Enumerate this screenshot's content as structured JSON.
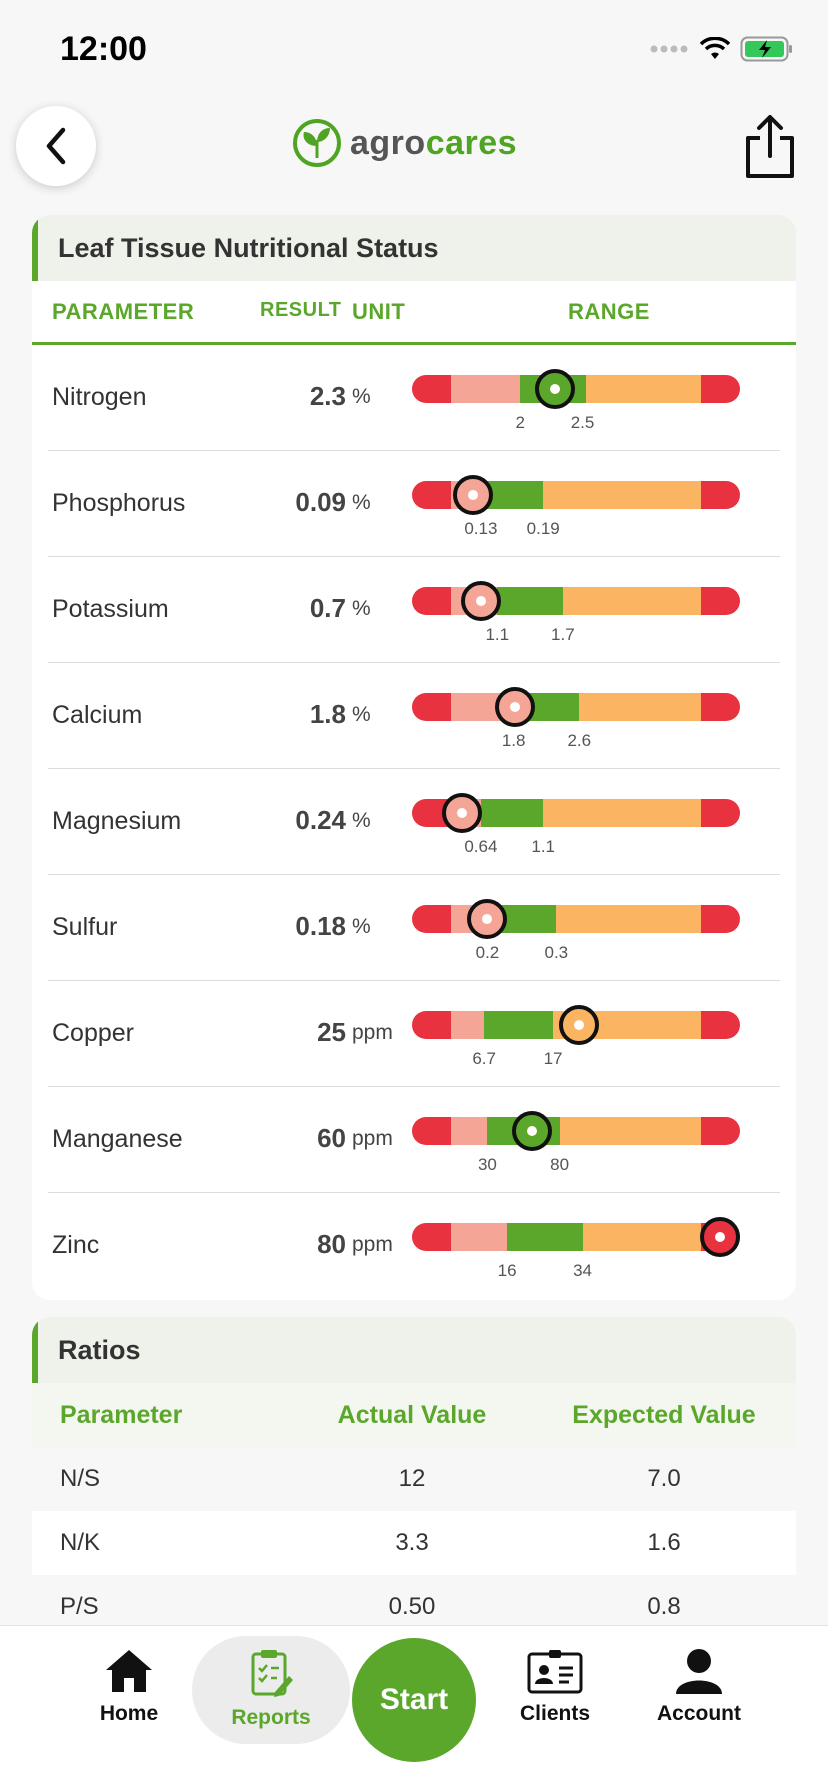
{
  "status_bar": {
    "time": "12:00"
  },
  "header": {
    "logo_part1": "agro",
    "logo_part2": "cares"
  },
  "leaf": {
    "title": "Leaf Tissue Nutritional Status",
    "columns": {
      "parameter": "PARAMETER",
      "result": "RESULT",
      "unit": "UNIT",
      "range": "RANGE"
    },
    "rows": [
      {
        "name": "Nitrogen",
        "result": "2.3",
        "unit": "%",
        "low": "2",
        "high": "2.5",
        "marker_color": "#5aa72b",
        "marker_value": 0.437
      },
      {
        "name": "Phosphorus",
        "result": "0.09",
        "unit": "%",
        "low": "0.13",
        "high": "0.19",
        "marker_color": "#f4a596",
        "marker_value": 0.186
      },
      {
        "name": "Potassium",
        "result": "0.7",
        "unit": "%",
        "low": "1.1",
        "high": "1.7",
        "marker_color": "#f4a596",
        "marker_value": 0.21
      },
      {
        "name": "Calcium",
        "result": "1.8",
        "unit": "%",
        "low": "1.8",
        "high": "2.6",
        "marker_color": "#f4a596",
        "marker_value": 0.314
      },
      {
        "name": "Magnesium",
        "result": "0.24",
        "unit": "%",
        "low": "0.64",
        "high": "1.1",
        "marker_color": "#f4a596",
        "marker_value": 0.152
      },
      {
        "name": "Sulfur",
        "result": "0.18",
        "unit": "%",
        "low": "0.2",
        "high": "0.3",
        "marker_color": "#f4a596",
        "marker_value": 0.228
      },
      {
        "name": "Copper",
        "result": "25",
        "unit": "ppm",
        "low": "6.7",
        "high": "17",
        "marker_color": "#fbb462",
        "marker_value": 0.508
      },
      {
        "name": "Manganese",
        "result": "60",
        "unit": "ppm",
        "low": "30",
        "high": "80",
        "marker_color": "#5aa72b",
        "marker_value": 0.366
      },
      {
        "name": "Zinc",
        "result": "80",
        "unit": "ppm",
        "low": "16",
        "high": "34",
        "marker_color": "#e8323f",
        "marker_value": 0.939
      }
    ]
  },
  "ratios": {
    "title": "Ratios",
    "columns": {
      "parameter": "Parameter",
      "actual": "Actual Value",
      "expected": "Expected Value"
    },
    "rows": [
      {
        "parameter": "N/S",
        "actual": "12",
        "expected": "7.0"
      },
      {
        "parameter": "N/K",
        "actual": "3.3",
        "expected": "1.6"
      },
      {
        "parameter": "P/S",
        "actual": "0.50",
        "expected": "0.8"
      }
    ]
  },
  "nav": {
    "home": "Home",
    "reports": "Reports",
    "start": "Start",
    "clients": "Clients",
    "account": "Account"
  },
  "colors": {
    "brand_green": "#5aa72b",
    "range_red": "#e8323f",
    "range_salmon": "#f4a596",
    "range_green": "#5aa72b",
    "range_orange": "#fbb462"
  }
}
